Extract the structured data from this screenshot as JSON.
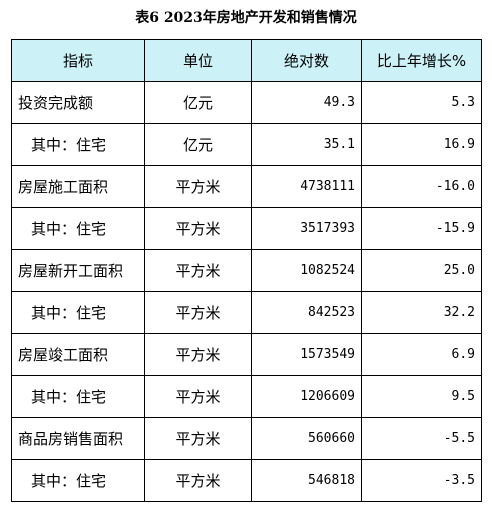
{
  "title": "表6  2023年房地产开发和销售情况",
  "headers": [
    "指标",
    "单位",
    "绝对数",
    "比上年增长%"
  ],
  "rows": [
    {
      "indicator": "投资完成额",
      "unit": "亿元",
      "value": "49.3",
      "growth": "5.3"
    },
    {
      "indicator": "其中：住宅",
      "unit": "亿元",
      "value": "35.1",
      "growth": "16.9"
    },
    {
      "indicator": "房屋施工面积",
      "unit": "平方米",
      "value": "4738111",
      "growth": "-16.0"
    },
    {
      "indicator": "其中：住宅",
      "unit": "平方米",
      "value": "3517393",
      "growth": "-15.9"
    },
    {
      "indicator": "房屋新开工面积",
      "unit": "平方米",
      "value": "1082524",
      "growth": "25.0"
    },
    {
      "indicator": "其中：住宅",
      "unit": "平方米",
      "value": "842523",
      "growth": "32.2"
    },
    {
      "indicator": "房屋竣工面积",
      "unit": "平方米",
      "value": "1573549",
      "growth": "6.9"
    },
    {
      "indicator": "其中：住宅",
      "unit": "平方米",
      "value": "1206609",
      "growth": "9.5"
    },
    {
      "indicator": "商品房销售面积",
      "unit": "平方米",
      "value": "560660",
      "growth": "-5.5"
    },
    {
      "indicator": "其中：住宅",
      "unit": "平方米",
      "value": "546818",
      "growth": "-3.5"
    }
  ]
}
